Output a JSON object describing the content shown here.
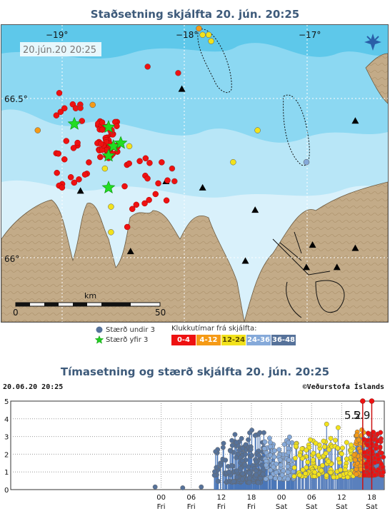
{
  "map": {
    "title": "Staðsetning skjálfta   20. jún. 20:25",
    "timestamp": "20.jún.20  20:25",
    "lon_labels": [
      "−19°",
      "−18°",
      "−17°"
    ],
    "lat_labels": [
      "66.5°",
      "66°"
    ],
    "scale_unit": "km",
    "scale_start": "0",
    "scale_end": "50",
    "compass_icon": "compass-star-icon",
    "colors": {
      "sea_deep": "#5ec8ea",
      "sea_mid": "#8cd8f2",
      "sea_shallow": "#b8e6f7",
      "sea_coast": "#d9f1fb",
      "land": "#c3ab88",
      "station": "#000000"
    },
    "earthquakes": [
      {
        "lon": -18.85,
        "lat": 66.47,
        "size": 1,
        "age": "0-4"
      },
      {
        "lon": -18.6,
        "lat": 66.4,
        "size": 3,
        "age": "0-4"
      },
      {
        "lon": -18.55,
        "lat": 66.35,
        "size": 3,
        "age": "0-4"
      },
      {
        "lon": -18.3,
        "lat": 66.6,
        "size": 1,
        "age": "0-4"
      },
      {
        "lon": -18.05,
        "lat": 66.58,
        "size": 1,
        "age": "0-4"
      },
      {
        "lon": -18.1,
        "lat": 66.28,
        "size": 1,
        "age": "0-4"
      },
      {
        "lon": -18.08,
        "lat": 66.24,
        "size": 1,
        "age": "0-4"
      },
      {
        "lon": -17.88,
        "lat": 66.72,
        "size": 1,
        "age": "4-12"
      },
      {
        "lon": -17.85,
        "lat": 66.7,
        "size": 1,
        "age": "12-24"
      },
      {
        "lon": -17.8,
        "lat": 66.7,
        "size": 1,
        "age": "12-24"
      },
      {
        "lon": -17.78,
        "lat": 66.68,
        "size": 1,
        "age": "12-24"
      },
      {
        "lon": -17.4,
        "lat": 66.4,
        "size": 1,
        "age": "12-24"
      },
      {
        "lon": -17.6,
        "lat": 66.3,
        "size": 1,
        "age": "12-24"
      },
      {
        "lon": -17.0,
        "lat": 66.3,
        "size": 1,
        "age": "24-36"
      },
      {
        "lon": -19.2,
        "lat": 66.4,
        "size": 1,
        "age": "4-12"
      },
      {
        "lon": -18.65,
        "lat": 66.28,
        "size": 1,
        "age": "12-24"
      },
      {
        "lon": -18.6,
        "lat": 66.16,
        "size": 1,
        "age": "12-24"
      },
      {
        "lon": -18.6,
        "lat": 66.08,
        "size": 1,
        "age": "12-24"
      },
      {
        "lon": -18.45,
        "lat": 66.35,
        "size": 1,
        "age": "12-24"
      },
      {
        "lon": -18.75,
        "lat": 66.48,
        "size": 1,
        "age": "4-12"
      }
    ],
    "big_quakes": [
      {
        "lon": -18.9,
        "lat": 66.42
      },
      {
        "lon": -18.62,
        "lat": 66.41
      },
      {
        "lon": -18.58,
        "lat": 66.35
      },
      {
        "lon": -18.52,
        "lat": 66.36
      },
      {
        "lon": -18.62,
        "lat": 66.32
      },
      {
        "lon": -18.62,
        "lat": 66.22
      }
    ],
    "stations": [
      {
        "lon": -18.02,
        "lat": 66.53
      },
      {
        "lon": -18.85,
        "lat": 66.21
      },
      {
        "lon": -18.44,
        "lat": 66.02
      },
      {
        "lon": -18.15,
        "lat": 66.24
      },
      {
        "lon": -17.85,
        "lat": 66.22
      },
      {
        "lon": -17.42,
        "lat": 66.15
      },
      {
        "lon": -16.6,
        "lat": 66.43
      },
      {
        "lon": -16.6,
        "lat": 66.03
      },
      {
        "lon": -16.95,
        "lat": 66.04
      },
      {
        "lon": -17.0,
        "lat": 65.97
      },
      {
        "lon": -17.5,
        "lat": 65.99
      },
      {
        "lon": -16.75,
        "lat": 65.97
      }
    ]
  },
  "legend": {
    "size_under_label": "Stærð undir 3",
    "size_over_label": "Stærð yfir 3",
    "time_label": "Klukkutímar frá skjálfta:",
    "swatches": [
      {
        "label": "0-4",
        "color": "#ee1111"
      },
      {
        "label": "4-12",
        "color": "#f59a16"
      },
      {
        "label": "12-24",
        "color": "#f2e21c"
      },
      {
        "label": "24-36",
        "color": "#85a9d9"
      },
      {
        "label": "36-48",
        "color": "#56729a"
      }
    ]
  },
  "chart": {
    "title": "Tímasetning og stærð skjálfta   20. jún. 20:25",
    "date_time": "20.06.20 20:25",
    "credit": "©Veðurstofa Íslands",
    "annotations": [
      "5.2",
      "5.9"
    ]
  },
  "chart_data": {
    "type": "scatter",
    "ylim": [
      0,
      5
    ],
    "yticks": [
      "0",
      "1",
      "2",
      "3",
      "4",
      "5"
    ],
    "xlim": [
      -30,
      44.5
    ],
    "x_ticks": [
      {
        "hour": 0,
        "label": "00",
        "day": "Fri"
      },
      {
        "hour": 6,
        "label": "06",
        "day": "Fri"
      },
      {
        "hour": 12,
        "label": "12",
        "day": "Fri"
      },
      {
        "hour": 18,
        "label": "18",
        "day": "Fri"
      },
      {
        "hour": 24,
        "label": "00",
        "day": "Sat"
      },
      {
        "hour": 30,
        "label": "06",
        "day": "Sat"
      },
      {
        "hour": 36,
        "label": "12",
        "day": "Sat"
      },
      {
        "hour": 42,
        "label": "18",
        "day": "Sat"
      }
    ],
    "major_events": [
      {
        "hour": 40.2,
        "magnitude": 5.2,
        "label": "5.2"
      },
      {
        "hour": 42.0,
        "magnitude": 5.9,
        "label": "5.9"
      }
    ],
    "bands": [
      {
        "age": "36-48",
        "hour_start": 10.5,
        "hour_end": 13.5,
        "mag_min": 0.4,
        "mag_max": 3.0,
        "count": 20
      },
      {
        "age": "36-48",
        "hour_start": 13.5,
        "hour_end": 17.5,
        "mag_min": 0.4,
        "mag_max": 3.2,
        "count": 70
      },
      {
        "age": "36-48",
        "hour_start": 17.5,
        "hour_end": 20.5,
        "mag_min": 0.4,
        "mag_max": 3.4,
        "count": 60
      },
      {
        "age": "24-36",
        "hour_start": 20.5,
        "hour_end": 26.5,
        "mag_min": 0.6,
        "mag_max": 3.0,
        "count": 90
      },
      {
        "age": "12-24",
        "hour_start": 26.5,
        "hour_end": 38.5,
        "mag_min": 0.7,
        "mag_max": 2.9,
        "count": 130
      },
      {
        "age": "4-12",
        "hour_start": 38.5,
        "hour_end": 40.5,
        "mag_min": 0.8,
        "mag_max": 3.5,
        "count": 60
      },
      {
        "age": "0-4",
        "hour_start": 40.5,
        "hour_end": 44.3,
        "mag_min": 0.8,
        "mag_max": 3.3,
        "count": 140
      }
    ],
    "isolated_points": [
      {
        "hour": -1.2,
        "magnitude": 0.15,
        "age": "36-48"
      },
      {
        "hour": 4.3,
        "magnitude": 0.1,
        "age": "36-48"
      },
      {
        "hour": 8.0,
        "magnitude": 0.15,
        "age": "36-48"
      },
      {
        "hour": 11.0,
        "magnitude": 1.25,
        "age": "36-48"
      },
      {
        "hour": 33.0,
        "magnitude": 3.7,
        "age": "12-24"
      },
      {
        "hour": 35.3,
        "magnitude": 3.5,
        "age": "12-24"
      }
    ]
  }
}
